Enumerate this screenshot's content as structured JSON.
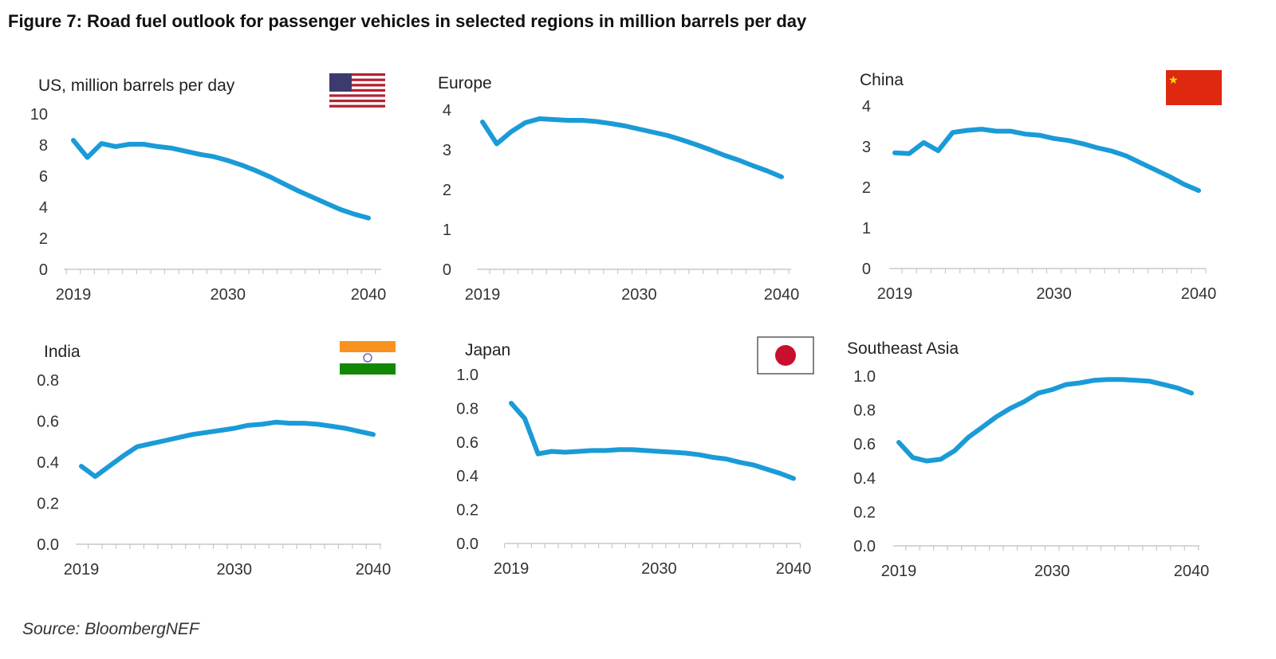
{
  "title": "Figure 7: Road fuel outlook for passenger vehicles in selected regions in million barrels per day",
  "source": "Source: BloombergNEF",
  "line_color": "#1a9bd7",
  "chart_data": [
    {
      "type": "line",
      "title": "US, million barrels per day",
      "flag": "us-flag",
      "x": [
        2019,
        2020,
        2021,
        2022,
        2023,
        2024,
        2025,
        2026,
        2027,
        2028,
        2029,
        2030,
        2031,
        2032,
        2033,
        2034,
        2035,
        2036,
        2037,
        2038,
        2039,
        2040
      ],
      "values": [
        8.3,
        7.2,
        8.1,
        7.9,
        8.05,
        8.05,
        7.9,
        7.8,
        7.6,
        7.4,
        7.25,
        7.0,
        6.7,
        6.35,
        5.95,
        5.5,
        5.05,
        4.65,
        4.25,
        3.85,
        3.55,
        3.3
      ],
      "ylim": [
        0,
        10
      ],
      "yticks": [
        "0",
        "2",
        "4",
        "6",
        "8",
        "10"
      ],
      "xticks": [
        "2019",
        "2030",
        "2040"
      ]
    },
    {
      "type": "line",
      "title": "Europe",
      "flag": "",
      "x": [
        2019,
        2020,
        2021,
        2022,
        2023,
        2024,
        2025,
        2026,
        2027,
        2028,
        2029,
        2030,
        2031,
        2032,
        2033,
        2034,
        2035,
        2036,
        2037,
        2038,
        2039,
        2040
      ],
      "values": [
        3.7,
        3.15,
        3.45,
        3.68,
        3.78,
        3.76,
        3.74,
        3.74,
        3.71,
        3.66,
        3.6,
        3.52,
        3.44,
        3.36,
        3.25,
        3.13,
        3.0,
        2.86,
        2.74,
        2.6,
        2.47,
        2.32
      ],
      "ylim": [
        0,
        4
      ],
      "yticks": [
        "0",
        "1",
        "2",
        "3",
        "4"
      ],
      "xticks": [
        "2019",
        "2030",
        "2040"
      ]
    },
    {
      "type": "line",
      "title": "China",
      "flag": "china-flag",
      "x": [
        2019,
        2020,
        2021,
        2022,
        2023,
        2024,
        2025,
        2026,
        2027,
        2028,
        2029,
        2030,
        2031,
        2032,
        2033,
        2034,
        2035,
        2036,
        2037,
        2038,
        2039,
        2040
      ],
      "values": [
        2.85,
        2.83,
        3.1,
        2.9,
        3.35,
        3.4,
        3.43,
        3.38,
        3.38,
        3.31,
        3.28,
        3.2,
        3.15,
        3.07,
        2.97,
        2.89,
        2.77,
        2.6,
        2.43,
        2.26,
        2.07,
        1.92
      ],
      "ylim": [
        0,
        4
      ],
      "yticks": [
        "0",
        "1",
        "2",
        "3",
        "4"
      ],
      "xticks": [
        "2019",
        "2030",
        "2040"
      ]
    },
    {
      "type": "line",
      "title": "India",
      "flag": "india-flag",
      "x": [
        2019,
        2020,
        2021,
        2022,
        2023,
        2024,
        2025,
        2026,
        2027,
        2028,
        2029,
        2030,
        2031,
        2032,
        2033,
        2034,
        2035,
        2036,
        2037,
        2038,
        2039,
        2040
      ],
      "values": [
        0.38,
        0.33,
        0.38,
        0.43,
        0.475,
        0.49,
        0.505,
        0.52,
        0.535,
        0.545,
        0.555,
        0.565,
        0.58,
        0.585,
        0.595,
        0.59,
        0.59,
        0.585,
        0.575,
        0.565,
        0.55,
        0.535
      ],
      "ylim": [
        0,
        0.8
      ],
      "yticks": [
        "0.0",
        "0.2",
        "0.4",
        "0.6",
        "0.8"
      ],
      "xticks": [
        "2019",
        "2030",
        "2040"
      ]
    },
    {
      "type": "line",
      "title": "Japan",
      "flag": "japan-flag",
      "x": [
        2019,
        2020,
        2021,
        2022,
        2023,
        2024,
        2025,
        2026,
        2027,
        2028,
        2029,
        2030,
        2031,
        2032,
        2033,
        2034,
        2035,
        2036,
        2037,
        2038,
        2039,
        2040
      ],
      "values": [
        0.83,
        0.74,
        0.53,
        0.545,
        0.54,
        0.545,
        0.55,
        0.55,
        0.555,
        0.555,
        0.55,
        0.545,
        0.54,
        0.535,
        0.525,
        0.51,
        0.5,
        0.48,
        0.465,
        0.44,
        0.415,
        0.385
      ],
      "ylim": [
        0,
        1.0
      ],
      "yticks": [
        "0.0",
        "0.2",
        "0.4",
        "0.6",
        "0.8",
        "1.0"
      ],
      "xticks": [
        "2019",
        "2030",
        "2040"
      ]
    },
    {
      "type": "line",
      "title": "Southeast Asia",
      "flag": "",
      "x": [
        2019,
        2020,
        2021,
        2022,
        2023,
        2024,
        2025,
        2026,
        2027,
        2028,
        2029,
        2030,
        2031,
        2032,
        2033,
        2034,
        2035,
        2036,
        2037,
        2038,
        2039,
        2040
      ],
      "values": [
        0.61,
        0.52,
        0.5,
        0.51,
        0.56,
        0.64,
        0.7,
        0.76,
        0.81,
        0.85,
        0.9,
        0.92,
        0.95,
        0.96,
        0.975,
        0.98,
        0.98,
        0.975,
        0.97,
        0.95,
        0.93,
        0.9
      ],
      "ylim": [
        0,
        1.0
      ],
      "yticks": [
        "0.0",
        "0.2",
        "0.4",
        "0.6",
        "0.8",
        "1.0"
      ],
      "xticks": [
        "2019",
        "2030",
        "2040"
      ]
    }
  ]
}
